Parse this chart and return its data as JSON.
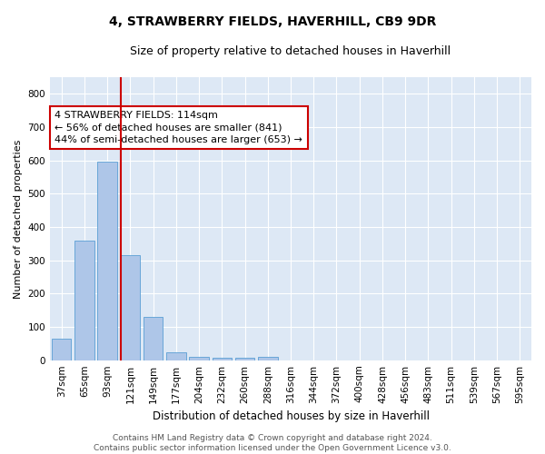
{
  "title": "4, STRAWBERRY FIELDS, HAVERHILL, CB9 9DR",
  "subtitle": "Size of property relative to detached houses in Haverhill",
  "xlabel": "Distribution of detached houses by size in Haverhill",
  "ylabel": "Number of detached properties",
  "bar_labels": [
    "37sqm",
    "65sqm",
    "93sqm",
    "121sqm",
    "149sqm",
    "177sqm",
    "204sqm",
    "232sqm",
    "260sqm",
    "288sqm",
    "316sqm",
    "344sqm",
    "372sqm",
    "400sqm",
    "428sqm",
    "456sqm",
    "483sqm",
    "511sqm",
    "539sqm",
    "567sqm",
    "595sqm"
  ],
  "bar_values": [
    65,
    358,
    597,
    316,
    130,
    25,
    9,
    7,
    7,
    10,
    0,
    0,
    0,
    0,
    0,
    0,
    0,
    0,
    0,
    0,
    0
  ],
  "bar_color": "#aec6e8",
  "bar_edge_color": "#5a9fd4",
  "property_line_color": "#cc0000",
  "annotation_text": "4 STRAWBERRY FIELDS: 114sqm\n← 56% of detached houses are smaller (841)\n44% of semi-detached houses are larger (653) →",
  "annotation_box_color": "#ffffff",
  "annotation_box_edge_color": "#cc0000",
  "ylim": [
    0,
    850
  ],
  "yticks": [
    0,
    100,
    200,
    300,
    400,
    500,
    600,
    700,
    800
  ],
  "background_color": "#dde8f5",
  "grid_color": "#ffffff",
  "footer_text": "Contains HM Land Registry data © Crown copyright and database right 2024.\nContains public sector information licensed under the Open Government Licence v3.0.",
  "title_fontsize": 10,
  "subtitle_fontsize": 9,
  "xlabel_fontsize": 8.5,
  "ylabel_fontsize": 8,
  "tick_fontsize": 7.5,
  "annotation_fontsize": 8,
  "footer_fontsize": 6.5
}
